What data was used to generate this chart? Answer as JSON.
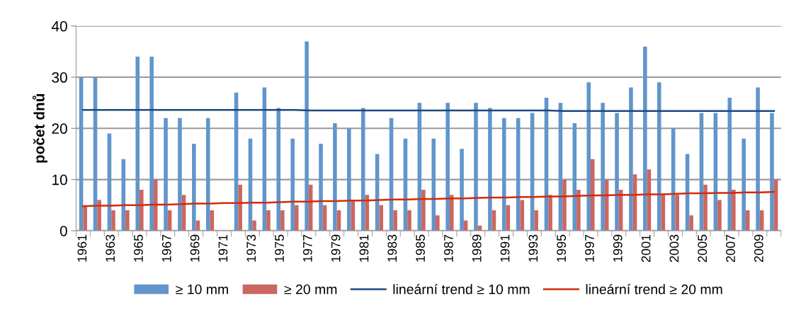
{
  "chart_data": {
    "type": "bar",
    "ylabel": "počet dnů",
    "categories": [
      "1961",
      null,
      "1963",
      null,
      "1965",
      null,
      "1967",
      null,
      "1969",
      null,
      "1971",
      null,
      "1973",
      null,
      "1975",
      null,
      "1977",
      null,
      "1979",
      null,
      "1981",
      null,
      "1983",
      null,
      "1985",
      null,
      "1987",
      null,
      "1989",
      null,
      "1991",
      null,
      "1993",
      null,
      "1995",
      null,
      "1997",
      null,
      "1999",
      null,
      "2001",
      null,
      "2003",
      null,
      "2005",
      null,
      "2007",
      null,
      "2009",
      null
    ],
    "series": [
      {
        "name": "≥ 10 mm",
        "color": "#6096cb",
        "values": [
          30,
          30,
          19,
          14,
          34,
          34,
          22,
          22,
          17,
          22,
          null,
          27,
          18,
          28,
          24,
          18,
          37,
          17,
          21,
          20,
          24,
          15,
          22,
          18,
          25,
          18,
          25,
          16,
          25,
          24,
          22,
          22,
          23,
          26,
          25,
          21,
          29,
          25,
          23,
          28,
          36,
          29,
          20,
          15,
          23,
          23,
          26,
          18,
          28,
          23
        ]
      },
      {
        "name": "≥ 20 mm",
        "color": "#cd6660",
        "values": [
          5,
          6,
          4,
          4,
          8,
          10,
          4,
          7,
          2,
          4,
          null,
          9,
          2,
          4,
          4,
          5,
          9,
          5,
          4,
          6,
          7,
          5,
          4,
          4,
          8,
          3,
          7,
          2,
          1,
          4,
          5,
          6,
          4,
          7,
          10,
          8,
          14,
          10,
          8,
          11,
          12,
          7,
          7,
          3,
          9,
          6,
          8,
          4,
          4,
          10
        ]
      },
      {
        "name": "lineární trend ≥ 10 mm",
        "type": "line",
        "color": "#1f497d",
        "values": [
          23.6,
          23.6,
          23.6,
          23.6,
          23.6,
          23.6,
          23.6,
          23.6,
          23.6,
          23.6,
          23.6,
          23.6,
          23.6,
          23.6,
          23.6,
          23.6,
          23.5,
          23.5,
          23.5,
          23.5,
          23.5,
          23.5,
          23.5,
          23.5,
          23.5,
          23.5,
          23.5,
          23.5,
          23.5,
          23.5,
          23.5,
          23.5,
          23.5,
          23.5,
          23.4,
          23.4,
          23.4,
          23.4,
          23.4,
          23.4,
          23.4,
          23.4,
          23.4,
          23.4,
          23.4,
          23.4,
          23.4,
          23.4,
          23.4,
          23.4
        ]
      },
      {
        "name": "lineární trend ≥ 20 mm",
        "type": "line",
        "color": "#d42a0a",
        "values": [
          4.8,
          4.9,
          4.9,
          5.0,
          5.0,
          5.1,
          5.1,
          5.2,
          5.3,
          5.3,
          5.4,
          5.4,
          5.5,
          5.5,
          5.6,
          5.7,
          5.7,
          5.8,
          5.8,
          5.9,
          5.9,
          6.0,
          6.1,
          6.1,
          6.2,
          6.2,
          6.3,
          6.3,
          6.4,
          6.5,
          6.5,
          6.6,
          6.6,
          6.7,
          6.7,
          6.8,
          6.9,
          6.9,
          7.0,
          7.0,
          7.1,
          7.1,
          7.2,
          7.3,
          7.3,
          7.4,
          7.4,
          7.5,
          7.5,
          7.6
        ]
      }
    ],
    "ylim": [
      0,
      40
    ],
    "yticks": [
      0,
      10,
      20,
      30,
      40
    ],
    "grid": "y",
    "legend": "bottom",
    "marker": "none",
    "line_style": "solid"
  }
}
